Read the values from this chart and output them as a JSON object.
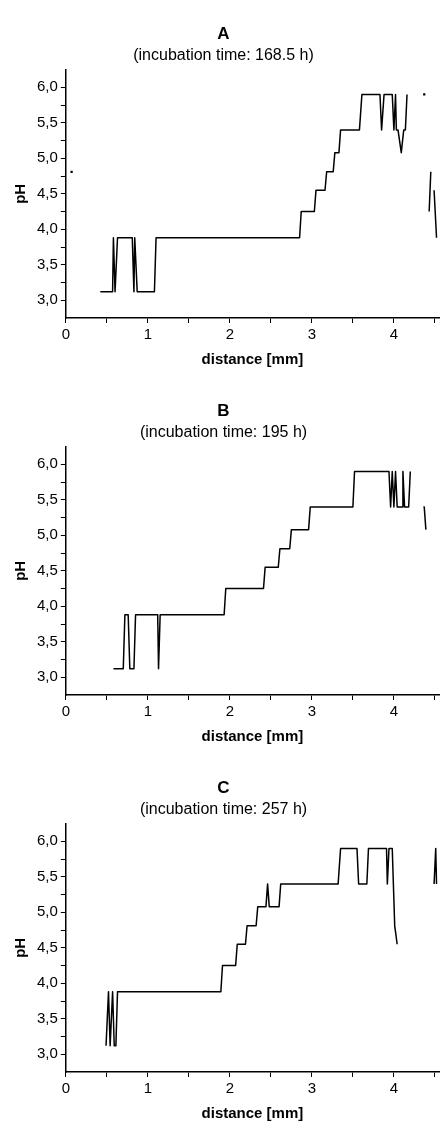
{
  "chart_data": [
    {
      "type": "line",
      "title": "A",
      "subtitle": "(incubation time: 168.5 h)",
      "xlabel": "distance [mm]",
      "ylabel": "pH",
      "xlim": [
        0,
        4.55
      ],
      "ylim": [
        2.75,
        6.25
      ],
      "xticks": [
        0,
        {
          "value": 0.5,
          "label": null
        },
        1,
        {
          "value": 1.5,
          "label": null
        },
        2,
        {
          "value": 2.5,
          "label": null
        },
        3,
        {
          "value": 3.5,
          "label": null
        },
        4,
        {
          "value": 4.5,
          "label": null
        }
      ],
      "yticks": [
        {
          "value": 3,
          "label": "3,0"
        },
        {
          "value": 3.25,
          "label": null
        },
        {
          "value": 3.5,
          "label": "3,5"
        },
        {
          "value": 3.75,
          "label": null
        },
        {
          "value": 4,
          "label": "4,0"
        },
        {
          "value": 4.25,
          "label": null
        },
        {
          "value": 4.5,
          "label": "4,5"
        },
        {
          "value": 4.75,
          "label": null
        },
        {
          "value": 5,
          "label": "5,0"
        },
        {
          "value": 5.25,
          "label": null
        },
        {
          "value": 5.5,
          "label": "5,5"
        },
        {
          "value": 5.75,
          "label": null
        },
        {
          "value": 6,
          "label": "6,0"
        }
      ],
      "grid": false,
      "legend": false,
      "marker": "none",
      "line_style": "solid",
      "series": [
        {
          "color": "#000000",
          "x": [
            0.42,
            0.57,
            0.58,
            0.6,
            0.63,
            0.81,
            0.83,
            0.84,
            0.87,
            1.08,
            1.1,
            2.85,
            2.87,
            3.03,
            3.05,
            3.16,
            3.18,
            3.26,
            3.28,
            3.33,
            3.35,
            3.58,
            3.61,
            3.83,
            3.85,
            3.88,
            3.98,
            4.0,
            4.02,
            4.03,
            4.05,
            4.09,
            4.12,
            4.14,
            4.16,
            4.3,
            4.43,
            4.45,
            4.47,
            4.49,
            4.52
          ],
          "values": [
            3.12,
            3.12,
            3.88,
            3.12,
            3.88,
            3.88,
            3.12,
            3.88,
            3.12,
            3.12,
            3.88,
            3.88,
            4.25,
            4.25,
            4.55,
            4.55,
            4.81,
            4.81,
            5.08,
            5.08,
            5.4,
            5.4,
            5.9,
            5.9,
            5.4,
            5.9,
            5.9,
            5.4,
            5.9,
            5.4,
            5.4,
            5.08,
            5.4,
            5.4,
            5.9,
            null,
            4.25,
            4.81,
            null,
            4.55,
            3.88
          ]
        },
        {
          "type": "scatter",
          "marker": "square",
          "color": "#000000",
          "x": [
            0.07,
            4.37
          ],
          "values": [
            4.81,
            5.9
          ]
        }
      ]
    },
    {
      "type": "line",
      "title": "B",
      "subtitle": "(incubation time: 195 h)",
      "xlabel": "distance [mm]",
      "ylabel": "pH",
      "xlim": [
        0,
        4.55
      ],
      "ylim": [
        2.75,
        6.25
      ],
      "xticks": [
        0,
        {
          "value": 0.5,
          "label": null
        },
        1,
        {
          "value": 1.5,
          "label": null
        },
        2,
        {
          "value": 2.5,
          "label": null
        },
        3,
        {
          "value": 3.5,
          "label": null
        },
        4,
        {
          "value": 4.5,
          "label": null
        }
      ],
      "yticks": [
        {
          "value": 3,
          "label": "3,0"
        },
        {
          "value": 3.25,
          "label": null
        },
        {
          "value": 3.5,
          "label": "3,5"
        },
        {
          "value": 3.75,
          "label": null
        },
        {
          "value": 4,
          "label": "4,0"
        },
        {
          "value": 4.25,
          "label": null
        },
        {
          "value": 4.5,
          "label": "4,5"
        },
        {
          "value": 4.75,
          "label": null
        },
        {
          "value": 5,
          "label": "5,0"
        },
        {
          "value": 5.25,
          "label": null
        },
        {
          "value": 5.5,
          "label": "5,5"
        },
        {
          "value": 5.75,
          "label": null
        },
        {
          "value": 6,
          "label": "6,0"
        }
      ],
      "grid": false,
      "legend": false,
      "marker": "none",
      "line_style": "solid",
      "series": [
        {
          "color": "#000000",
          "x": [
            0.58,
            0.7,
            0.72,
            0.76,
            0.78,
            0.83,
            0.85,
            1.12,
            1.13,
            1.15,
            1.93,
            1.95,
            2.41,
            2.43,
            2.59,
            2.61,
            2.73,
            2.75,
            2.96,
            2.98,
            3.5,
            3.52,
            3.94,
            3.96,
            3.98,
            4.0,
            4.02,
            4.04,
            4.1,
            4.11,
            4.13,
            4.18,
            4.2,
            4.3,
            4.36,
            4.37,
            4.39
          ],
          "values": [
            3.12,
            3.12,
            3.88,
            3.88,
            3.12,
            3.12,
            3.88,
            3.88,
            3.12,
            3.88,
            3.88,
            4.25,
            4.25,
            4.55,
            4.55,
            4.81,
            4.81,
            5.08,
            5.08,
            5.4,
            5.4,
            5.9,
            5.9,
            5.4,
            5.9,
            5.4,
            5.9,
            5.4,
            5.4,
            5.9,
            5.4,
            5.4,
            5.9,
            null,
            5.4,
            5.4,
            5.08
          ]
        }
      ]
    },
    {
      "type": "line",
      "title": "C",
      "subtitle": "(incubation time: 257 h)",
      "xlabel": "distance [mm]",
      "ylabel": "pH",
      "xlim": [
        0,
        4.55
      ],
      "ylim": [
        2.75,
        6.25
      ],
      "xticks": [
        0,
        {
          "value": 0.5,
          "label": null
        },
        1,
        {
          "value": 1.5,
          "label": null
        },
        2,
        {
          "value": 2.5,
          "label": null
        },
        3,
        {
          "value": 3.5,
          "label": null
        },
        4,
        {
          "value": 4.5,
          "label": null
        }
      ],
      "yticks": [
        {
          "value": 3,
          "label": "3,0"
        },
        {
          "value": 3.25,
          "label": null
        },
        {
          "value": 3.5,
          "label": "3,5"
        },
        {
          "value": 3.75,
          "label": null
        },
        {
          "value": 4,
          "label": "4,0"
        },
        {
          "value": 4.25,
          "label": null
        },
        {
          "value": 4.5,
          "label": "4,5"
        },
        {
          "value": 4.75,
          "label": null
        },
        {
          "value": 5,
          "label": "5,0"
        },
        {
          "value": 5.25,
          "label": null
        },
        {
          "value": 5.5,
          "label": "5,5"
        },
        {
          "value": 5.75,
          "label": null
        },
        {
          "value": 6,
          "label": "6,0"
        }
      ],
      "grid": false,
      "legend": false,
      "marker": "none",
      "line_style": "solid",
      "series": [
        {
          "color": "#000000",
          "x": [
            0.49,
            0.52,
            0.54,
            0.57,
            0.59,
            0.61,
            0.63,
            1.89,
            1.91,
            2.07,
            2.09,
            2.19,
            2.21,
            2.32,
            2.34,
            2.44,
            2.46,
            2.48,
            2.6,
            2.62,
            3.32,
            3.35,
            3.55,
            3.57,
            3.67,
            3.69,
            3.91,
            3.92,
            3.94,
            3.98,
            4.01,
            4.04,
            4.3,
            4.49,
            4.51,
            4.52
          ],
          "values": [
            3.12,
            3.88,
            3.12,
            3.88,
            3.12,
            3.12,
            3.88,
            3.88,
            4.25,
            4.25,
            4.55,
            4.55,
            4.81,
            4.81,
            5.08,
            5.08,
            5.4,
            5.08,
            5.08,
            5.4,
            5.4,
            5.9,
            5.9,
            5.4,
            5.4,
            5.9,
            5.9,
            5.4,
            5.9,
            5.9,
            4.81,
            4.55,
            null,
            5.4,
            5.9,
            5.4
          ]
        }
      ]
    }
  ]
}
